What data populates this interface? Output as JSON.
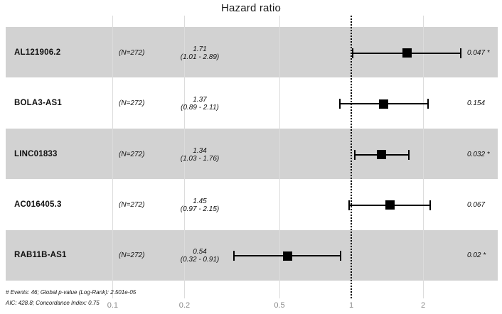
{
  "title": "Hazard ratio",
  "colors": {
    "band_shaded": "#d2d2d2",
    "gridline": "#dcdcdc",
    "reference_line": "#000000",
    "marker": "#000000",
    "axis_text": "#8a8a8a"
  },
  "chart_data": {
    "type": "forest",
    "title": "Hazard ratio",
    "x_scale": "log10",
    "xlim": [
      0.08,
      2.6
    ],
    "reference_line": 1,
    "x_ticks": [
      {
        "label": "0.1",
        "value": 0.1
      },
      {
        "label": "0.2",
        "value": 0.2
      },
      {
        "label": "0.5",
        "value": 0.5
      },
      {
        "label": "1",
        "value": 1
      },
      {
        "label": "2",
        "value": 2
      }
    ],
    "rows": [
      {
        "label": "AL121906.2",
        "n_text": "(N=272)",
        "hr": 1.71,
        "ci_low": 1.01,
        "ci_high": 2.89,
        "hr_text": "1.71",
        "ci_text": "(1.01 - 2.89)",
        "p_text": "0.047 *",
        "shaded": true
      },
      {
        "label": "BOLA3-AS1",
        "n_text": "(N=272)",
        "hr": 1.37,
        "ci_low": 0.89,
        "ci_high": 2.11,
        "hr_text": "1.37",
        "ci_text": "(0.89 - 2.11)",
        "p_text": "0.154",
        "shaded": false
      },
      {
        "label": "LINC01833",
        "n_text": "(N=272)",
        "hr": 1.34,
        "ci_low": 1.03,
        "ci_high": 1.76,
        "hr_text": "1.34",
        "ci_text": "(1.03 - 1.76)",
        "p_text": "0.032 *",
        "shaded": true
      },
      {
        "label": "AC016405.3",
        "n_text": "(N=272)",
        "hr": 1.45,
        "ci_low": 0.97,
        "ci_high": 2.15,
        "hr_text": "1.45",
        "ci_text": "(0.97 - 2.15)",
        "p_text": "0.067",
        "shaded": false
      },
      {
        "label": "RAB11B-AS1",
        "n_text": "(N=272)",
        "hr": 0.54,
        "ci_low": 0.32,
        "ci_high": 0.91,
        "hr_text": "0.54",
        "ci_text": "(0.32 - 0.91)",
        "p_text": "0.02 *",
        "shaded": true
      }
    ],
    "footnotes": [
      "# Events: 46; Global p-value (Log-Rank): 2.501e-05",
      "AIC: 428.8; Concordance Index: 0.75"
    ]
  }
}
